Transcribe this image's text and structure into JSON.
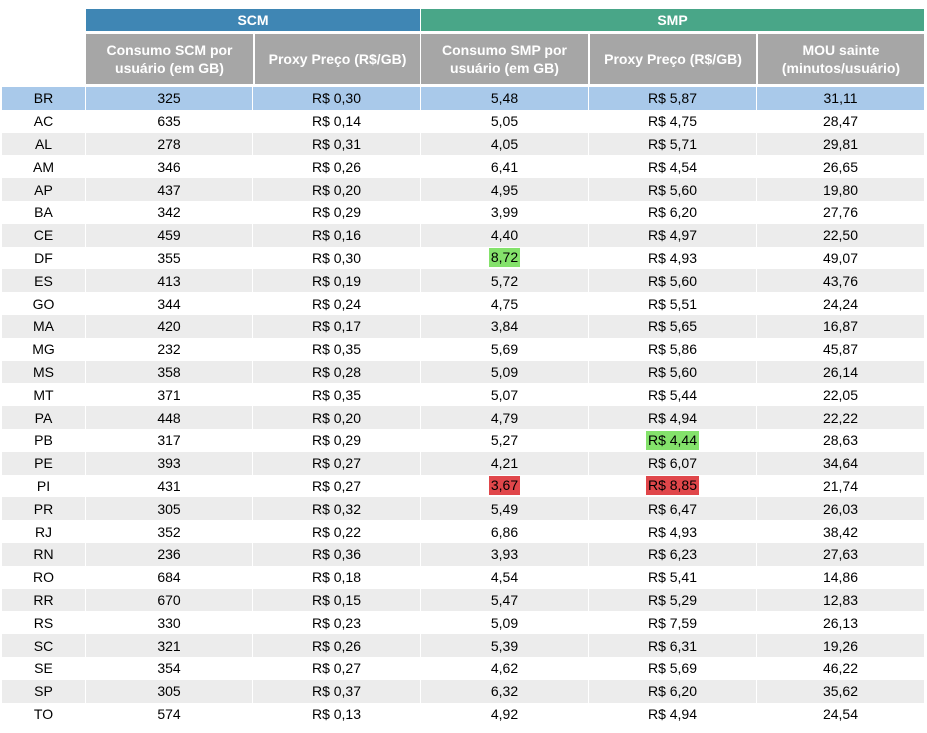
{
  "chart_data": {
    "type": "table",
    "groups": [
      {
        "label": "SCM",
        "columns": [
          0,
          1
        ]
      },
      {
        "label": "SMP",
        "columns": [
          2,
          3,
          4
        ]
      }
    ],
    "columns": [
      "Consumo SCM por usuário (em GB)",
      "Proxy Preço (R$/GB)",
      "Consumo SMP por usuário (em GB)",
      "Proxy Preço (R$/GB)",
      "MOU sainte (minutos/usuário)"
    ],
    "highlight_colors": {
      "green": "#84e26b",
      "red": "#e0464a"
    },
    "rows": [
      {
        "state": "BR",
        "values": [
          "325",
          "R$ 0,30",
          "5,48",
          "R$ 5,87",
          "31,11"
        ]
      },
      {
        "state": "AC",
        "values": [
          "635",
          "R$ 0,14",
          "5,05",
          "R$ 4,75",
          "28,47"
        ]
      },
      {
        "state": "AL",
        "values": [
          "278",
          "R$ 0,31",
          "4,05",
          "R$ 5,71",
          "29,81"
        ]
      },
      {
        "state": "AM",
        "values": [
          "346",
          "R$ 0,26",
          "6,41",
          "R$ 4,54",
          "26,65"
        ]
      },
      {
        "state": "AP",
        "values": [
          "437",
          "R$ 0,20",
          "4,95",
          "R$ 5,60",
          "19,80"
        ]
      },
      {
        "state": "BA",
        "values": [
          "342",
          "R$ 0,29",
          "3,99",
          "R$ 6,20",
          "27,76"
        ]
      },
      {
        "state": "CE",
        "values": [
          "459",
          "R$ 0,16",
          "4,40",
          "R$ 4,97",
          "22,50"
        ]
      },
      {
        "state": "DF",
        "values": [
          "355",
          "R$ 0,30",
          "8,72",
          "R$ 4,93",
          "49,07"
        ],
        "highlight": {
          "2": "green"
        }
      },
      {
        "state": "ES",
        "values": [
          "413",
          "R$ 0,19",
          "5,72",
          "R$ 5,60",
          "43,76"
        ]
      },
      {
        "state": "GO",
        "values": [
          "344",
          "R$ 0,24",
          "4,75",
          "R$ 5,51",
          "24,24"
        ]
      },
      {
        "state": "MA",
        "values": [
          "420",
          "R$ 0,17",
          "3,84",
          "R$ 5,65",
          "16,87"
        ]
      },
      {
        "state": "MG",
        "values": [
          "232",
          "R$ 0,35",
          "5,69",
          "R$ 5,86",
          "45,87"
        ]
      },
      {
        "state": "MS",
        "values": [
          "358",
          "R$ 0,28",
          "5,09",
          "R$ 5,60",
          "26,14"
        ]
      },
      {
        "state": "MT",
        "values": [
          "371",
          "R$ 0,35",
          "5,07",
          "R$ 5,44",
          "22,05"
        ]
      },
      {
        "state": "PA",
        "values": [
          "448",
          "R$ 0,20",
          "4,79",
          "R$ 4,94",
          "22,22"
        ]
      },
      {
        "state": "PB",
        "values": [
          "317",
          "R$ 0,29",
          "5,27",
          "R$ 4,44",
          "28,63"
        ],
        "highlight": {
          "3": "green"
        }
      },
      {
        "state": "PE",
        "values": [
          "393",
          "R$ 0,27",
          "4,21",
          "R$ 6,07",
          "34,64"
        ]
      },
      {
        "state": "PI",
        "values": [
          "431",
          "R$ 0,27",
          "3,67",
          "R$ 8,85",
          "21,74"
        ],
        "highlight": {
          "2": "red",
          "3": "red"
        }
      },
      {
        "state": "PR",
        "values": [
          "305",
          "R$ 0,32",
          "5,49",
          "R$ 6,47",
          "26,03"
        ]
      },
      {
        "state": "RJ",
        "values": [
          "352",
          "R$ 0,22",
          "6,86",
          "R$ 4,93",
          "38,42"
        ]
      },
      {
        "state": "RN",
        "values": [
          "236",
          "R$ 0,36",
          "3,93",
          "R$ 6,23",
          "27,63"
        ]
      },
      {
        "state": "RO",
        "values": [
          "684",
          "R$ 0,18",
          "4,54",
          "R$ 5,41",
          "14,86"
        ]
      },
      {
        "state": "RR",
        "values": [
          "670",
          "R$ 0,15",
          "5,47",
          "R$ 5,29",
          "12,83"
        ]
      },
      {
        "state": "RS",
        "values": [
          "330",
          "R$ 0,23",
          "5,09",
          "R$ 7,59",
          "26,13"
        ]
      },
      {
        "state": "SC",
        "values": [
          "321",
          "R$ 0,26",
          "5,39",
          "R$ 6,31",
          "19,26"
        ]
      },
      {
        "state": "SE",
        "values": [
          "354",
          "R$ 0,27",
          "4,62",
          "R$ 5,69",
          "46,22"
        ]
      },
      {
        "state": "SP",
        "values": [
          "305",
          "R$ 0,37",
          "6,32",
          "R$ 6,20",
          "35,62"
        ]
      },
      {
        "state": "TO",
        "values": [
          "574",
          "R$ 0,13",
          "4,92",
          "R$ 4,94",
          "24,54"
        ]
      }
    ]
  }
}
